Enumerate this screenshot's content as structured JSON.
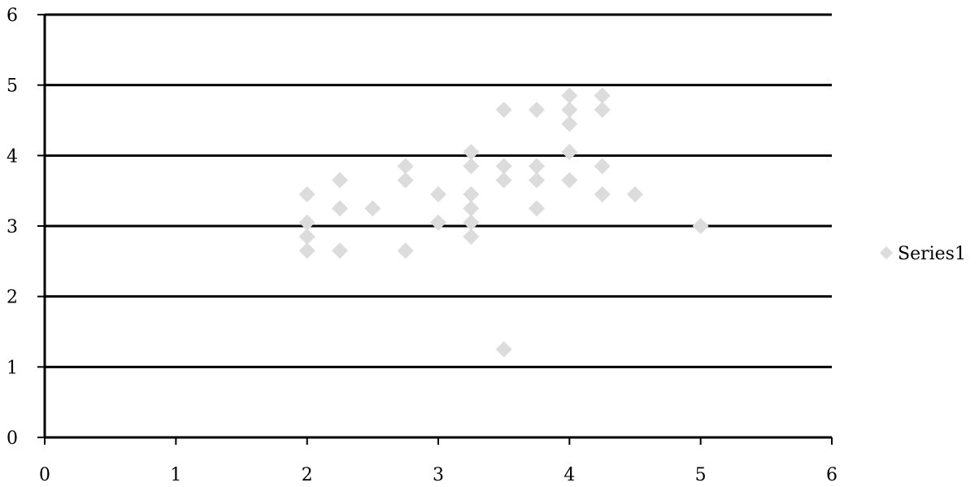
{
  "chart_data": {
    "type": "scatter",
    "title": "",
    "xlabel": "",
    "ylabel": "",
    "xlim": [
      0,
      6
    ],
    "ylim": [
      0,
      6
    ],
    "x_ticks": [
      0,
      1,
      2,
      3,
      4,
      5,
      6
    ],
    "y_ticks": [
      0,
      1,
      2,
      3,
      4,
      5,
      6
    ],
    "grid": "horizontal",
    "legend_position": "right",
    "series": [
      {
        "name": "Series1",
        "color": "#dcdcdc",
        "marker": "diamond",
        "points": [
          [
            2.0,
            3.45
          ],
          [
            2.0,
            3.05
          ],
          [
            2.0,
            2.85
          ],
          [
            2.0,
            2.65
          ],
          [
            2.25,
            3.65
          ],
          [
            2.25,
            3.25
          ],
          [
            2.25,
            2.65
          ],
          [
            2.5,
            3.25
          ],
          [
            2.75,
            3.85
          ],
          [
            2.75,
            3.65
          ],
          [
            2.75,
            2.65
          ],
          [
            3.0,
            3.45
          ],
          [
            3.0,
            3.05
          ],
          [
            3.25,
            4.05
          ],
          [
            3.25,
            3.85
          ],
          [
            3.25,
            3.45
          ],
          [
            3.25,
            3.25
          ],
          [
            3.25,
            3.05
          ],
          [
            3.25,
            2.85
          ],
          [
            3.5,
            4.65
          ],
          [
            3.5,
            3.85
          ],
          [
            3.5,
            3.65
          ],
          [
            3.5,
            1.25
          ],
          [
            3.75,
            4.65
          ],
          [
            3.75,
            3.85
          ],
          [
            3.75,
            3.65
          ],
          [
            3.75,
            3.25
          ],
          [
            4.0,
            4.85
          ],
          [
            4.0,
            4.65
          ],
          [
            4.0,
            4.45
          ],
          [
            4.0,
            4.05
          ],
          [
            4.0,
            3.65
          ],
          [
            4.25,
            4.85
          ],
          [
            4.25,
            4.65
          ],
          [
            4.25,
            3.85
          ],
          [
            4.25,
            3.45
          ],
          [
            4.5,
            3.45
          ],
          [
            5.0,
            3.0
          ]
        ]
      }
    ]
  }
}
